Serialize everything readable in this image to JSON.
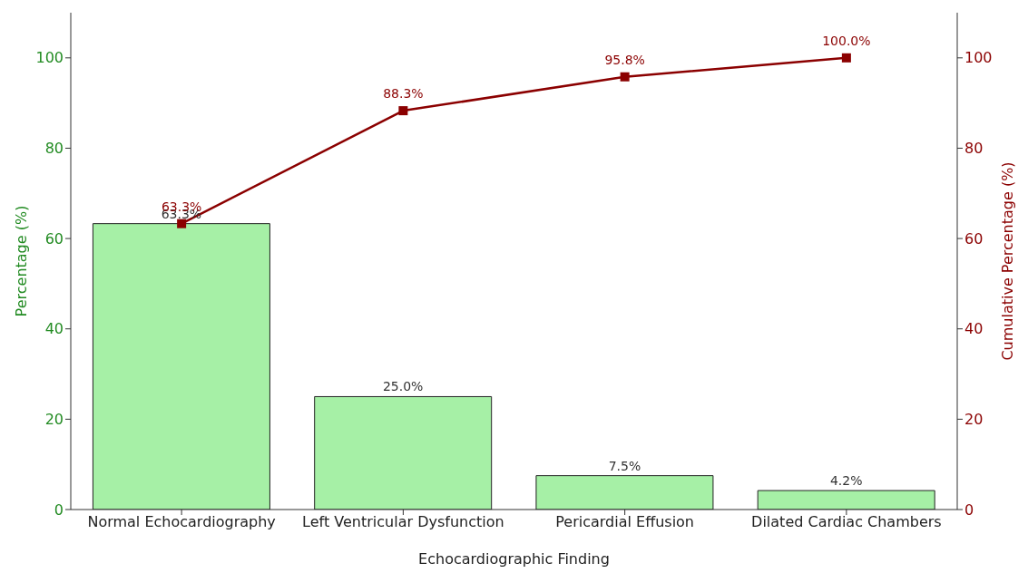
{
  "chart_data": {
    "type": "bar",
    "xlabel": "Echocardiographic Finding",
    "ylabel": "Percentage (%)",
    "y2label": "Cumulative Percentage (%)",
    "categories": [
      "Normal Echocardiography",
      "Left Ventricular Dysfunction",
      "Pericardial Effusion",
      "Dilated Cardiac Chambers"
    ],
    "series": [
      {
        "color": "#a6f0a6",
        "values": [
          63.3,
          25.0,
          7.5,
          4.2
        ],
        "value_labels": [
          "63.3%",
          "25.0%",
          "7.5%",
          "4.2%"
        ]
      },
      {
        "type": "line",
        "axis": "y2",
        "color": "#8b0000",
        "values": [
          63.3,
          88.3,
          95.8,
          100.0
        ],
        "value_labels": [
          "63.3%",
          "88.3%",
          "95.8%",
          "100.0%"
        ]
      }
    ],
    "ylim": [
      0,
      110
    ],
    "yticks": [
      0,
      20,
      40,
      60,
      80,
      100
    ],
    "y2lim": [
      0,
      110
    ],
    "y2ticks": [
      0,
      20,
      40,
      60,
      80,
      100
    ],
    "grid": false,
    "legend": false,
    "marker": "square"
  }
}
